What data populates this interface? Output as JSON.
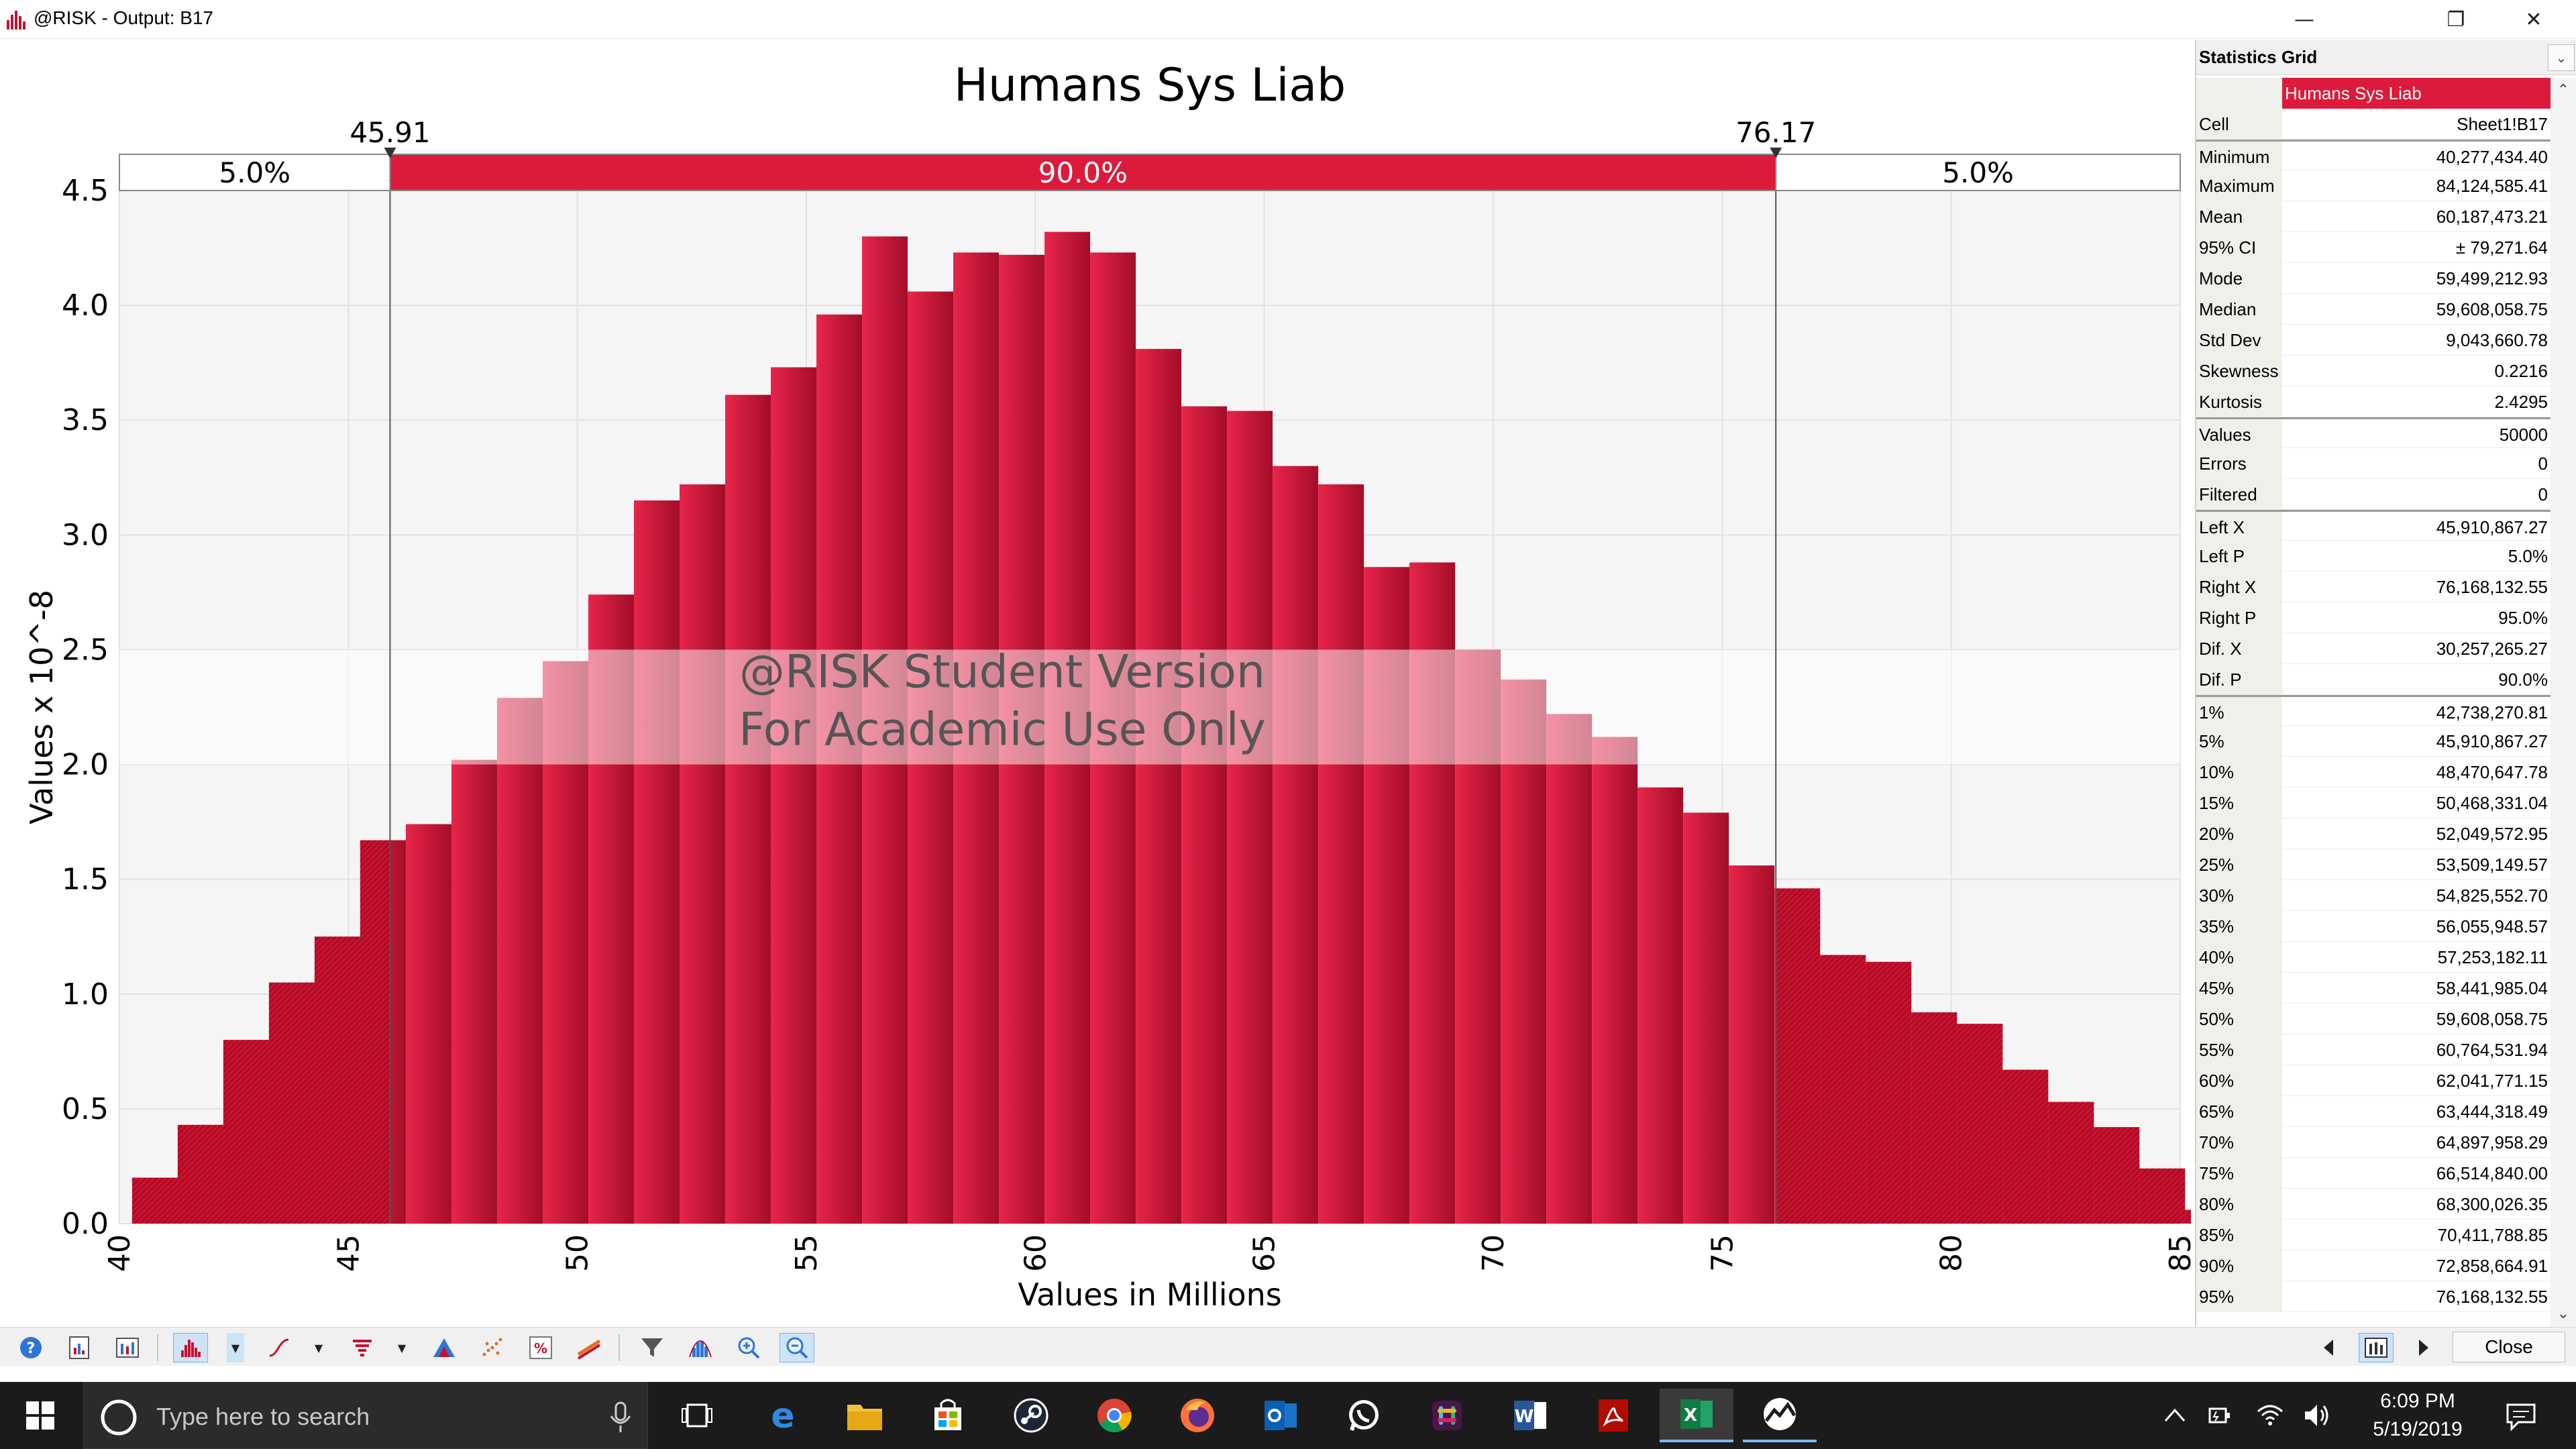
{
  "window": {
    "title": "@RISK - Output: B17",
    "minimize_icon": "minimize-icon",
    "restore_icon": "restore-icon",
    "close_icon": "close-icon"
  },
  "chart_data": {
    "type": "bar",
    "title": "Humans Sys Liab",
    "xlabel": "Values in Millions",
    "ylabel": "Values x 10^-8",
    "xlim": [
      40,
      85
    ],
    "ylim": [
      0,
      4.5
    ],
    "x_ticks": [
      "40",
      "45",
      "50",
      "55",
      "60",
      "65",
      "70",
      "75",
      "80",
      "85"
    ],
    "y_ticks": [
      "0.0",
      "0.5",
      "1.0",
      "1.5",
      "2.0",
      "2.5",
      "3.0",
      "3.5",
      "4.0",
      "4.5"
    ],
    "bin_start": 40.277,
    "bin_width": 0.9962,
    "values": [
      0.2,
      0.43,
      0.8,
      1.05,
      1.25,
      1.67,
      1.74,
      2.02,
      2.29,
      2.45,
      2.74,
      3.15,
      3.22,
      3.61,
      3.73,
      3.96,
      4.3,
      4.06,
      4.23,
      4.22,
      4.32,
      4.23,
      3.81,
      3.56,
      3.54,
      3.3,
      3.22,
      2.86,
      2.88,
      2.5,
      2.37,
      2.22,
      2.12,
      1.9,
      1.79,
      1.56,
      1.46,
      1.17,
      1.14,
      0.92,
      0.87,
      0.67,
      0.53,
      0.42,
      0.24,
      0.06
    ],
    "delimiters": {
      "left_x": "45.91",
      "right_x": "76.17",
      "left_value": 45.91,
      "right_value": 76.17,
      "left_pct": "5.0%",
      "middle_pct": "90.0%",
      "right_pct": "5.0%"
    },
    "watermark_line1": "@RISK Student Version",
    "watermark_line2": "For Academic Use Only",
    "colors": {
      "bar": "#c8102e",
      "bar_light": "#dc2448",
      "delim_fill": "#dc1a3c",
      "plot_bg": "#f5f5f5"
    }
  },
  "stats": {
    "title": "Statistics Grid",
    "rows": [
      {
        "label": "",
        "value": "Humans Sys Liab",
        "hdr": true
      },
      {
        "label": "Cell",
        "value": "Sheet1!B17"
      },
      {
        "label": "Minimum",
        "value": "40,277,434.40",
        "sep": true
      },
      {
        "label": "Maximum",
        "value": "84,124,585.41"
      },
      {
        "label": "Mean",
        "value": "60,187,473.21"
      },
      {
        "label": "  95% CI",
        "value": "± 79,271.64"
      },
      {
        "label": "Mode",
        "value": "59,499,212.93"
      },
      {
        "label": "Median",
        "value": "59,608,058.75"
      },
      {
        "label": "Std Dev",
        "value": "9,043,660.78"
      },
      {
        "label": "Skewness",
        "value": "0.2216"
      },
      {
        "label": "Kurtosis",
        "value": "2.4295"
      },
      {
        "label": "Values",
        "value": "50000",
        "sep": true
      },
      {
        "label": "Errors",
        "value": "0"
      },
      {
        "label": "Filtered",
        "value": "0"
      },
      {
        "label": "Left X",
        "value": "45,910,867.27",
        "sep": true
      },
      {
        "label": "Left P",
        "value": "5.0%"
      },
      {
        "label": "Right X",
        "value": "76,168,132.55"
      },
      {
        "label": "Right P",
        "value": "95.0%"
      },
      {
        "label": "Dif. X",
        "value": "30,257,265.27"
      },
      {
        "label": "Dif. P",
        "value": "90.0%"
      },
      {
        "label": "1%",
        "value": "42,738,270.81",
        "sep": true
      },
      {
        "label": "5%",
        "value": "45,910,867.27"
      },
      {
        "label": "10%",
        "value": "48,470,647.78"
      },
      {
        "label": "15%",
        "value": "50,468,331.04"
      },
      {
        "label": "20%",
        "value": "52,049,572.95"
      },
      {
        "label": "25%",
        "value": "53,509,149.57"
      },
      {
        "label": "30%",
        "value": "54,825,552.70"
      },
      {
        "label": "35%",
        "value": "56,055,948.57"
      },
      {
        "label": "40%",
        "value": "57,253,182.11"
      },
      {
        "label": "45%",
        "value": "58,441,985.04"
      },
      {
        "label": "50%",
        "value": "59,608,058.75"
      },
      {
        "label": "55%",
        "value": "60,764,531.94"
      },
      {
        "label": "60%",
        "value": "62,041,771.15"
      },
      {
        "label": "65%",
        "value": "63,444,318.49"
      },
      {
        "label": "70%",
        "value": "64,897,958.29"
      },
      {
        "label": "75%",
        "value": "66,514,840.00"
      },
      {
        "label": "80%",
        "value": "68,300,026.35"
      },
      {
        "label": "85%",
        "value": "70,411,788.85"
      },
      {
        "label": "90%",
        "value": "72,858,664.91"
      },
      {
        "label": "95%",
        "value": "76,168,132.55"
      }
    ]
  },
  "toolbar": {
    "close_label": "Close",
    "icons": [
      "help-icon",
      "report-icon",
      "summary-icon",
      "histogram-icon",
      "cumulative-icon",
      "tornado-icon",
      "graph-type-icon",
      "scatter-icon",
      "percent-icon",
      "overlay-icon",
      "filter-icon",
      "fit-icon",
      "zoom-in-icon",
      "zoom-out-icon"
    ]
  },
  "taskbar": {
    "search_placeholder": "Type here to search",
    "time": "6:09 PM",
    "date": "5/19/2019",
    "apps": [
      "edge-icon",
      "file-explorer-icon",
      "store-icon",
      "steam-icon",
      "chrome-icon",
      "firefox-icon",
      "outlook-icon",
      "whatsapp-icon",
      "slack-icon",
      "word-icon",
      "acrobat-icon",
      "excel-icon",
      "risk-app-icon"
    ]
  }
}
